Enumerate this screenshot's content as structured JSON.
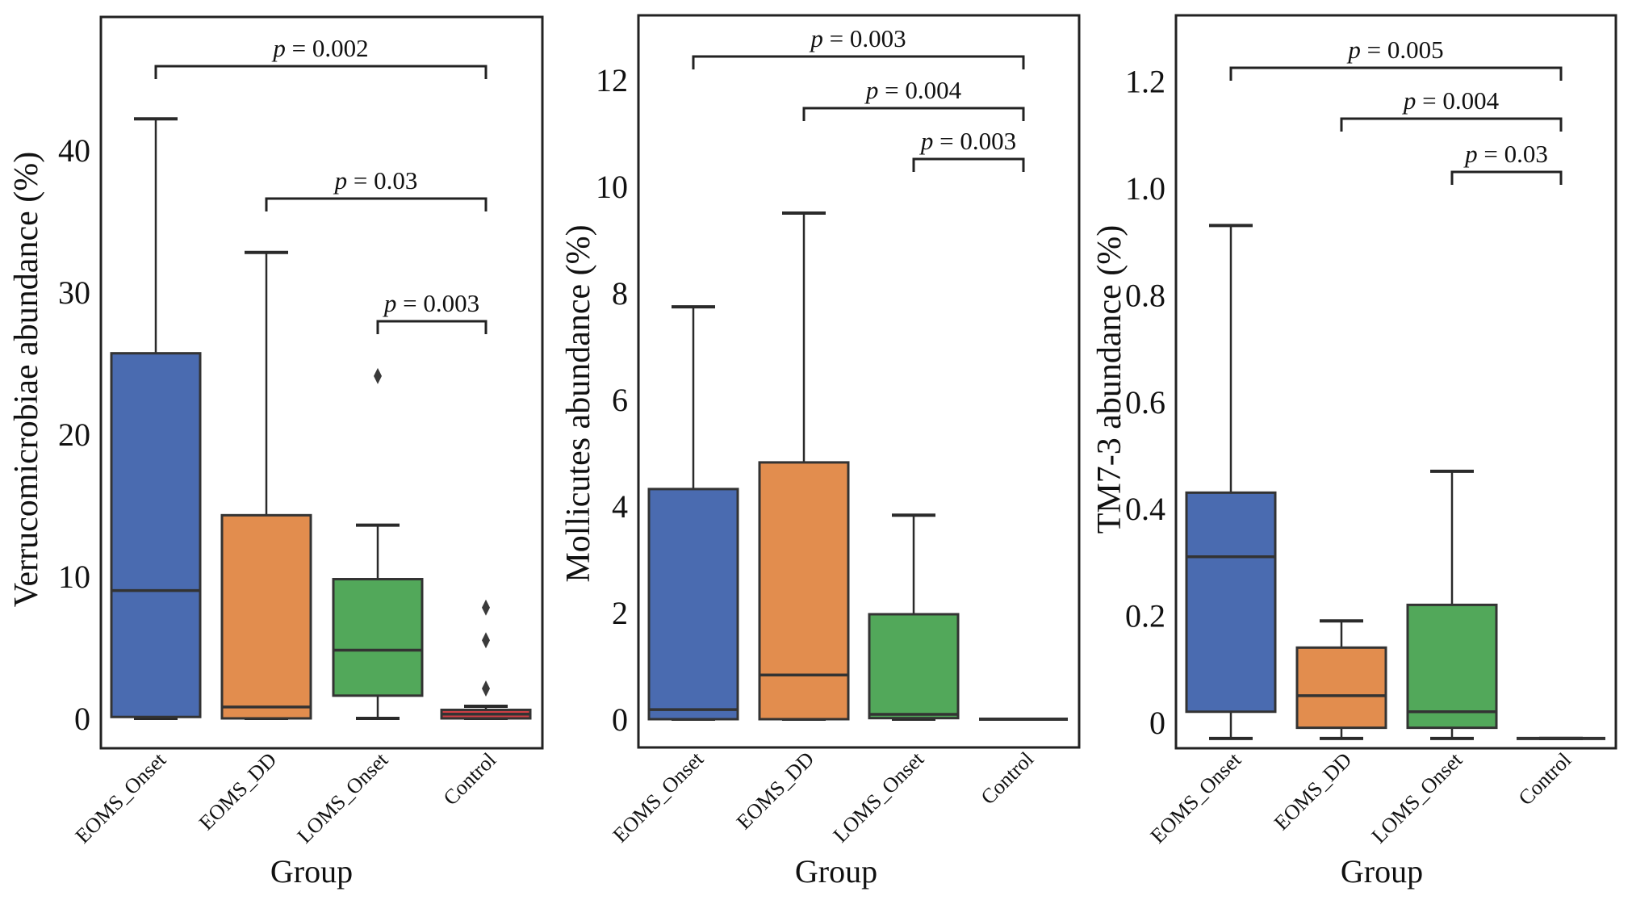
{
  "chart_data": [
    {
      "type": "box",
      "title": "",
      "xlabel": "Group",
      "ylabel": "Verrucomicrobiae abundance (%)",
      "categories": [
        "EOMS_Onset",
        "EOMS_DD",
        "LOMS_Onset",
        "Control"
      ],
      "colors": [
        "#4A6BB0",
        "#E28D4E",
        "#52A85A",
        "#CE3F45"
      ],
      "yticks": [
        "0",
        "10",
        "20",
        "30",
        "40"
      ],
      "ytick_values": [
        0,
        10,
        20,
        30,
        40
      ],
      "ylim": [
        -2,
        49
      ],
      "boxes": [
        {
          "group": "EOMS_Onset",
          "whisker_low": 0,
          "q1": 0.1,
          "median": 9.0,
          "q3": 25.7,
          "whisker_high": 42.2,
          "outliers": []
        },
        {
          "group": "EOMS_DD",
          "whisker_low": 0,
          "q1": 0,
          "median": 0.8,
          "q3": 14.3,
          "whisker_high": 32.8,
          "outliers": []
        },
        {
          "group": "LOMS_Onset",
          "whisker_low": 0,
          "q1": 1.6,
          "median": 4.8,
          "q3": 9.8,
          "whisker_high": 13.6,
          "outliers": [
            24.1
          ]
        },
        {
          "group": "Control",
          "whisker_low": 0,
          "q1": 0,
          "median": 0.3,
          "q3": 0.6,
          "whisker_high": 0.85,
          "outliers": [
            2.1,
            5.5,
            7.8
          ]
        }
      ],
      "comparisons": [
        {
          "from": "EOMS_Onset",
          "to": "Control",
          "label": "p = 0.002",
          "p": 0.002
        },
        {
          "from": "EOMS_DD",
          "to": "Control",
          "label": "p = 0.03",
          "p": 0.03
        },
        {
          "from": "LOMS_Onset",
          "to": "Control",
          "label": "p = 0.003",
          "p": 0.003
        }
      ]
    },
    {
      "type": "box",
      "title": "",
      "xlabel": "Group",
      "ylabel": "Mollicutes abundance (%)",
      "categories": [
        "EOMS_Onset",
        "EOMS_DD",
        "LOMS_Onset",
        "Control"
      ],
      "colors": [
        "#4A6BB0",
        "#E28D4E",
        "#52A85A",
        "#CE3F45"
      ],
      "yticks": [
        "0",
        "2",
        "4",
        "6",
        "8",
        "10",
        "12"
      ],
      "ytick_values": [
        0,
        2,
        4,
        6,
        8,
        10,
        12
      ],
      "ylim": [
        -0.5,
        13.2
      ],
      "boxes": [
        {
          "group": "EOMS_Onset",
          "whisker_low": 0,
          "q1": 0,
          "median": 0.18,
          "q3": 4.32,
          "whisker_high": 7.74,
          "outliers": []
        },
        {
          "group": "EOMS_DD",
          "whisker_low": 0,
          "q1": 0,
          "median": 0.83,
          "q3": 4.82,
          "whisker_high": 9.5,
          "outliers": []
        },
        {
          "group": "LOMS_Onset",
          "whisker_low": 0,
          "q1": 0.02,
          "median": 0.09,
          "q3": 1.97,
          "whisker_high": 3.83,
          "outliers": []
        },
        {
          "group": "Control",
          "whisker_low": 0,
          "q1": 0,
          "median": 0,
          "q3": 0,
          "whisker_high": 0,
          "outliers": []
        }
      ],
      "comparisons": [
        {
          "from": "EOMS_Onset",
          "to": "Control",
          "label": "p = 0.003",
          "p": 0.003
        },
        {
          "from": "EOMS_DD",
          "to": "Control",
          "label": "p = 0.004",
          "p": 0.004
        },
        {
          "from": "LOMS_Onset",
          "to": "Control",
          "label": "p = 0.003",
          "p": 0.003
        }
      ]
    },
    {
      "type": "box",
      "title": "",
      "xlabel": "Group",
      "ylabel": "TM7-3 abundance (%)",
      "categories": [
        "EOMS_Onset",
        "EOMS_DD",
        "LOMS_Onset",
        "Control"
      ],
      "colors": [
        "#4A6BB0",
        "#E28D4E",
        "#52A85A",
        "#CE3F45"
      ],
      "yticks": [
        "0",
        "0.2",
        "0.4",
        "0.6",
        "0.8",
        "1.0",
        "1.2"
      ],
      "ytick_values": [
        0,
        0.2,
        0.4,
        0.6,
        0.8,
        1.0,
        1.2
      ],
      "ylim": [
        -0.05,
        1.32
      ],
      "boxes": [
        {
          "group": "EOMS_Onset",
          "whisker_low": -0.03,
          "q1": 0.02,
          "median": 0.31,
          "q3": 0.43,
          "whisker_high": 0.93,
          "outliers": []
        },
        {
          "group": "EOMS_DD",
          "whisker_low": -0.03,
          "q1": -0.01,
          "median": 0.05,
          "q3": 0.14,
          "whisker_high": 0.19,
          "outliers": []
        },
        {
          "group": "LOMS_Onset",
          "whisker_low": -0.03,
          "q1": -0.01,
          "median": 0.02,
          "q3": 0.22,
          "whisker_high": 0.47,
          "outliers": []
        },
        {
          "group": "Control",
          "whisker_low": -0.03,
          "q1": -0.03,
          "median": -0.03,
          "q3": -0.03,
          "whisker_high": -0.03,
          "outliers": []
        }
      ],
      "comparisons": [
        {
          "from": "EOMS_Onset",
          "to": "Control",
          "label": "p = 0.005",
          "p": 0.005
        },
        {
          "from": "EOMS_DD",
          "to": "Control",
          "label": "p = 0.004",
          "p": 0.004
        },
        {
          "from": "LOMS_Onset",
          "to": "Control",
          "label": "p = 0.03",
          "p": 0.03
        }
      ]
    }
  ]
}
